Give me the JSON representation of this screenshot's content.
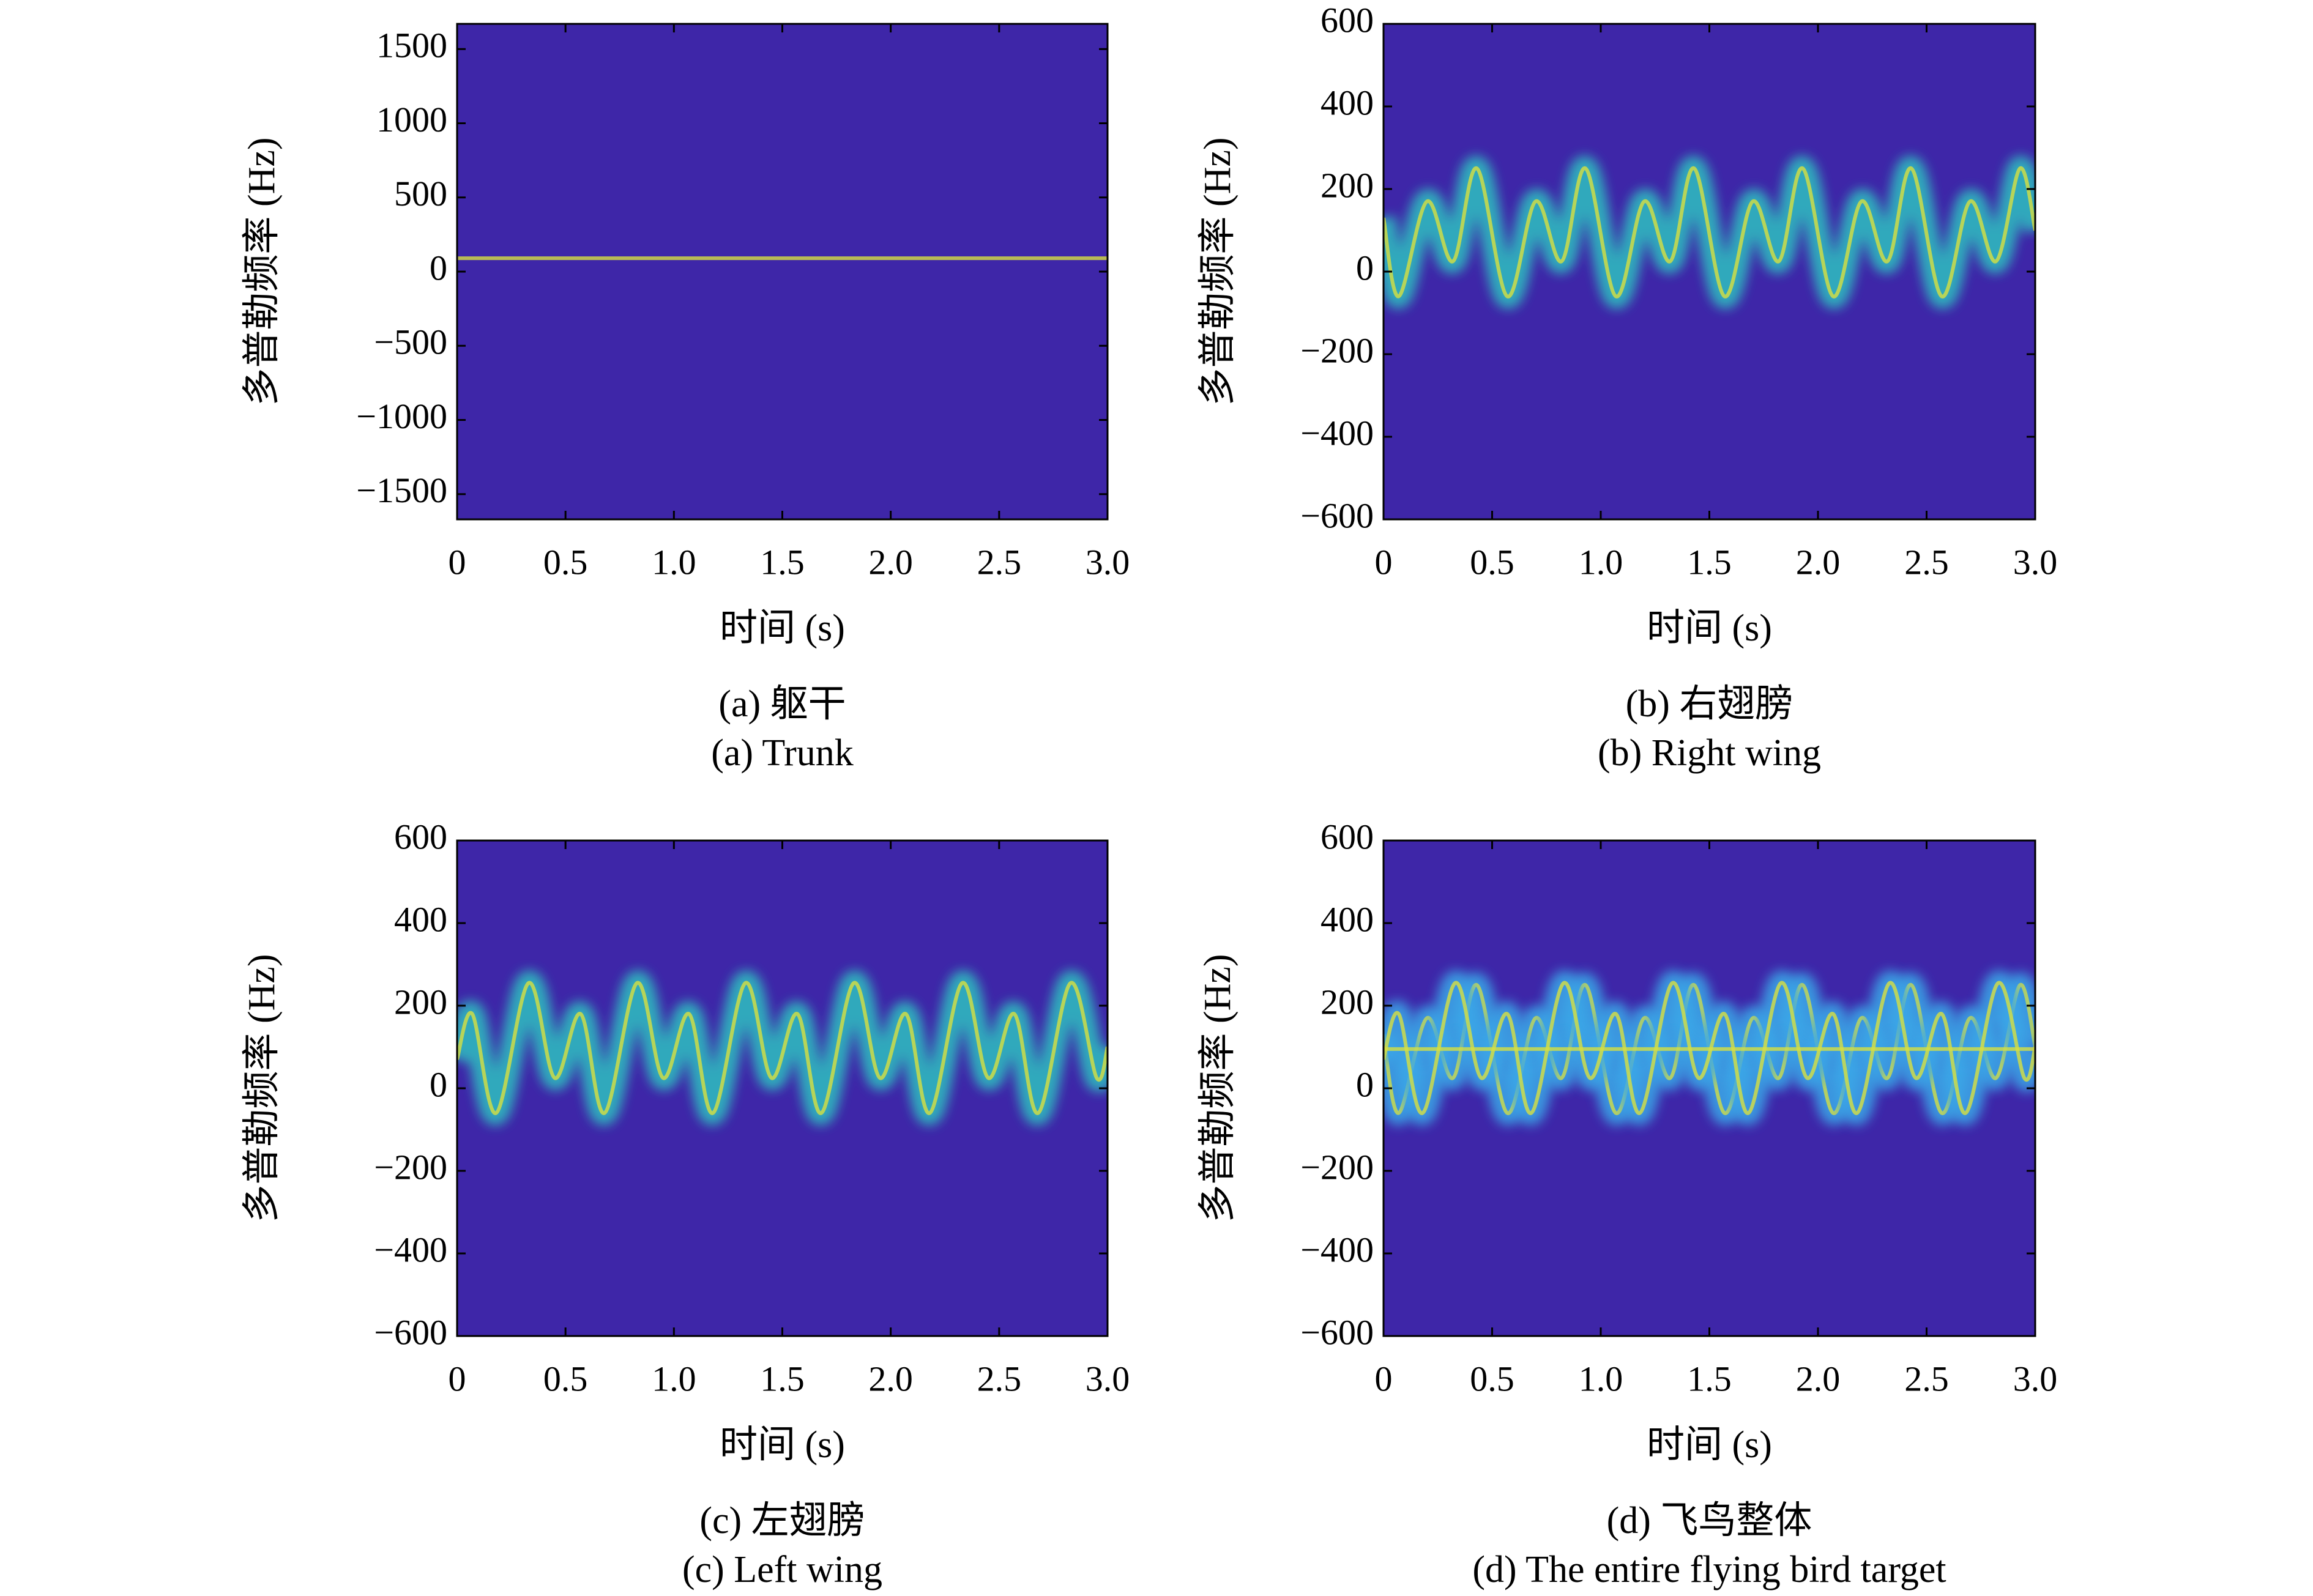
{
  "chart_data": [
    {
      "type": "spectrogram",
      "caption_cn": "(a) 躯干",
      "caption": "(a) Trunk",
      "xlabel": "时间 (s)",
      "ylabel": "多普勒频率 (Hz)",
      "background": "#3e26a8",
      "xlim": [
        0,
        3
      ],
      "ylim": [
        -1670,
        1670
      ],
      "xticks": [
        0,
        0.5,
        {
          "value": 1,
          "label": "1.0"
        },
        1.5,
        {
          "value": 2,
          "label": "2.0"
        },
        2.5,
        {
          "value": 3,
          "label": "3.0"
        }
      ],
      "yticks": [
        {
          "value": -1500,
          "label": "−1500"
        },
        {
          "value": -1000,
          "label": "−1000"
        },
        {
          "value": -500,
          "label": "−500"
        },
        0,
        500,
        1000,
        1500
      ],
      "series": [
        {
          "color": "#40d0a0",
          "x": [
            0,
            3
          ],
          "values": [
            90,
            90
          ]
        }
      ]
    },
    {
      "type": "spectrogram",
      "caption_cn": "(b) 右翅膀",
      "caption": "(b) Right wing",
      "xlabel": "时间 (s)",
      "ylabel": "多普勒频率 (Hz)",
      "background": "#3e26a8",
      "xlim": [
        0,
        3
      ],
      "ylim": [
        -600,
        600
      ],
      "xticks": [
        0,
        0.5,
        {
          "value": 1,
          "label": "1.0"
        },
        1.5,
        {
          "value": 2,
          "label": "2.0"
        },
        2.5,
        {
          "value": 3,
          "label": "3.0"
        }
      ],
      "yticks": [
        {
          "value": -600,
          "label": "−600"
        },
        {
          "value": -400,
          "label": "−400"
        },
        {
          "value": -200,
          "label": "−200"
        },
        0,
        200,
        400,
        600
      ],
      "series": [
        {
          "color": "#2fc0c0",
          "x": [
            0,
            0.07,
            0.2,
            0.32,
            0.43,
            0.57,
            0.7,
            0.82,
            0.93,
            1.07,
            1.2,
            1.32,
            1.43,
            1.57,
            1.7,
            1.82,
            1.93,
            2.07,
            2.2,
            2.32,
            2.43,
            2.57,
            2.7,
            2.82,
            2.93,
            3.0
          ],
          "values": [
            130,
            -60,
            170,
            25,
            250,
            -60,
            170,
            25,
            250,
            -60,
            170,
            25,
            250,
            -60,
            170,
            25,
            250,
            -60,
            170,
            25,
            250,
            -60,
            170,
            25,
            250,
            100
          ]
        }
      ]
    },
    {
      "type": "spectrogram",
      "caption_cn": "(c) 左翅膀",
      "caption": "(c) Left wing",
      "xlabel": "时间 (s)",
      "ylabel": "多普勒频率 (Hz)",
      "background": "#3e26a8",
      "xlim": [
        0,
        3
      ],
      "ylim": [
        -600,
        600
      ],
      "xticks": [
        0,
        0.5,
        {
          "value": 1,
          "label": "1.0"
        },
        1.5,
        {
          "value": 2,
          "label": "2.0"
        },
        2.5,
        {
          "value": 3,
          "label": "3.0"
        }
      ],
      "yticks": [
        {
          "value": -600,
          "label": "−600"
        },
        {
          "value": -400,
          "label": "−400"
        },
        {
          "value": -200,
          "label": "−200"
        },
        0,
        200,
        400,
        600
      ],
      "series": [
        {
          "color": "#2fc0c0",
          "x": [
            0,
            0.07,
            0.18,
            0.33,
            0.45,
            0.57,
            0.68,
            0.83,
            0.95,
            1.07,
            1.18,
            1.33,
            1.45,
            1.57,
            1.68,
            1.83,
            1.95,
            2.07,
            2.18,
            2.33,
            2.45,
            2.57,
            2.68,
            2.83,
            2.95,
            3.0
          ],
          "values": [
            70,
            180,
            -60,
            255,
            25,
            180,
            -60,
            255,
            25,
            180,
            -60,
            255,
            25,
            180,
            -60,
            255,
            25,
            180,
            -60,
            255,
            25,
            180,
            -60,
            255,
            25,
            100
          ]
        }
      ]
    },
    {
      "type": "spectrogram",
      "caption_cn": "(d) 飞鸟整体",
      "caption": "(d) The entire flying bird target",
      "xlabel": "时间 (s)",
      "ylabel": "多普勒频率 (Hz)",
      "background": "#3e26a8",
      "xlim": [
        0,
        3
      ],
      "ylim": [
        -600,
        600
      ],
      "xticks": [
        0,
        0.5,
        {
          "value": 1,
          "label": "1.0"
        },
        1.5,
        {
          "value": 2,
          "label": "2.0"
        },
        2.5,
        {
          "value": 3,
          "label": "3.0"
        }
      ],
      "yticks": [
        {
          "value": -600,
          "label": "−600"
        },
        {
          "value": -400,
          "label": "−400"
        },
        {
          "value": -200,
          "label": "−200"
        },
        0,
        200,
        400,
        600
      ],
      "series": [
        {
          "color": "#3aa8e8",
          "x": [
            0,
            0.07,
            0.2,
            0.32,
            0.43,
            0.57,
            0.7,
            0.82,
            0.93,
            1.07,
            1.2,
            1.32,
            1.43,
            1.57,
            1.7,
            1.82,
            1.93,
            2.07,
            2.2,
            2.32,
            2.43,
            2.57,
            2.7,
            2.82,
            2.93,
            3.0
          ],
          "values": [
            130,
            -60,
            170,
            25,
            250,
            -60,
            170,
            25,
            250,
            -60,
            170,
            25,
            250,
            -60,
            170,
            25,
            250,
            -60,
            170,
            25,
            250,
            -60,
            170,
            25,
            250,
            100
          ]
        },
        {
          "color": "#3aa8e8",
          "x": [
            0,
            0.07,
            0.18,
            0.33,
            0.45,
            0.57,
            0.68,
            0.83,
            0.95,
            1.07,
            1.18,
            1.33,
            1.45,
            1.57,
            1.68,
            1.83,
            1.95,
            2.07,
            2.18,
            2.33,
            2.45,
            2.57,
            2.68,
            2.83,
            2.95,
            3.0
          ],
          "values": [
            70,
            180,
            -60,
            255,
            25,
            180,
            -60,
            255,
            25,
            180,
            -60,
            255,
            25,
            180,
            -60,
            255,
            25,
            180,
            -60,
            255,
            25,
            180,
            -60,
            255,
            25,
            100
          ]
        },
        {
          "color": "#40d0a0",
          "x": [
            0,
            3
          ],
          "values": [
            95,
            95
          ]
        }
      ]
    }
  ]
}
